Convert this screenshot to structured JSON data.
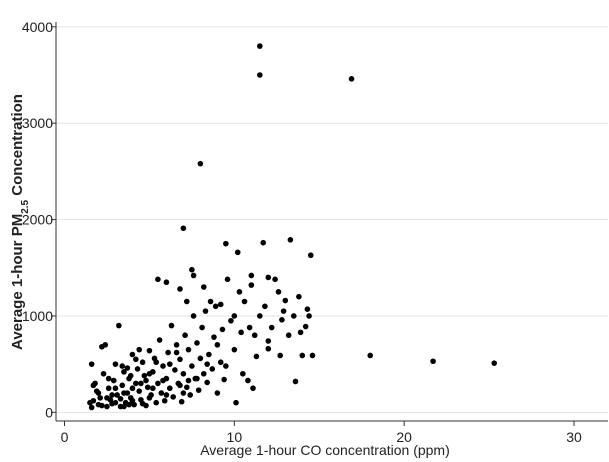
{
  "chart_data": {
    "type": "scatter",
    "x_label": "Average 1-hour CO concentration (ppm)",
    "y_label": [
      "Average 1-hour PM",
      "2.5",
      " Concentration"
    ],
    "color": "#000000",
    "xlim": [
      -0.5,
      32
    ],
    "xticks": [
      0,
      10,
      20,
      30
    ],
    "ylim": [
      -90,
      4050
    ],
    "yticks": [
      0,
      1000,
      2000,
      3000,
      4000
    ],
    "grid": true,
    "x": [
      1.6,
      1.7,
      1.8,
      1.6,
      1.9,
      2.0,
      2.1,
      2.2,
      2.3,
      2.4,
      2.5,
      2.6,
      2.7,
      2.8,
      2.9,
      3.0,
      3.1,
      3.2,
      3.3,
      3.4,
      3.5,
      3.6,
      3.7,
      3.8,
      3.9,
      4.0,
      4.1,
      4.2,
      4.3,
      4.4,
      4.5,
      4.6,
      4.7,
      4.8,
      4.9,
      5.0,
      5.1,
      5.2,
      5.3,
      5.4,
      5.5,
      5.6,
      5.7,
      5.8,
      5.9,
      6.0,
      6.1,
      6.2,
      6.3,
      6.4,
      6.5,
      6.6,
      6.7,
      6.8,
      6.9,
      7.0,
      7.1,
      7.2,
      7.3,
      7.4,
      7.5,
      7.6,
      7.7,
      7.8,
      7.9,
      8.0,
      8.1,
      8.2,
      8.3,
      8.4,
      8.5,
      8.6,
      8.7,
      8.8,
      8.9,
      9.0,
      9.2,
      9.3,
      9.4,
      9.6,
      9.8,
      10.0,
      10.1,
      10.3,
      10.4,
      10.6,
      10.8,
      10.9,
      11.0,
      11.1,
      11.3,
      11.5,
      11.8,
      12.0,
      12.2,
      12.4,
      12.7,
      12.9,
      13.2,
      13.5,
      13.8,
      14.0,
      14.2,
      14.6,
      11.5,
      11.5,
      16.9,
      8.0,
      7.0,
      18.0,
      21.7,
      25.3,
      13.3,
      11.7,
      9.5,
      14.5,
      10.2,
      7.5,
      5.5,
      6.0,
      11.0,
      12.0,
      12.6,
      13.0,
      14.3,
      13.6,
      12.0,
      2.0,
      2.5,
      3.0,
      3.0,
      3.5,
      3.5,
      4.0,
      4.0,
      4.5,
      5.0,
      5.0,
      3.8,
      4.2,
      2.8,
      3.3,
      3.7,
      4.6,
      5.2,
      5.8,
      6.2,
      6.8,
      7.3,
      1.5,
      1.7,
      2.2,
      2.6,
      3.4,
      3.9,
      4.4,
      4.8,
      5.4,
      6.0,
      6.6,
      7.0,
      7.8,
      8.4,
      9.0,
      9.5,
      10.5,
      11.2,
      10.0,
      9.2,
      8.2,
      6.8,
      7.2,
      7.6,
      12.8,
      13.9,
      14.4
    ],
    "values": [
      50,
      120,
      300,
      500,
      220,
      80,
      150,
      680,
      400,
      700,
      60,
      250,
      130,
      90,
      330,
      500,
      180,
      900,
      60,
      280,
      420,
      100,
      200,
      350,
      150,
      600,
      80,
      300,
      450,
      220,
      130,
      520,
      380,
      70,
      260,
      640,
      180,
      420,
      560,
      100,
      300,
      750,
      200,
      480,
      120,
      350,
      620,
      250,
      900,
      160,
      440,
      700,
      300,
      550,
      110,
      400,
      800,
      260,
      650,
      180,
      480,
      1000,
      350,
      720,
      230,
      560,
      880,
      400,
      1050,
      310,
      600,
      1150,
      450,
      780,
      1100,
      200,
      520,
      860,
      340,
      1380,
      950,
      650,
      100,
      1250,
      830,
      1150,
      330,
      880,
      1320,
      250,
      580,
      1000,
      1100,
      660,
      880,
      1380,
      590,
      1050,
      800,
      1000,
      1200,
      590,
      890,
      590,
      3800,
      3500,
      3460,
      2580,
      1910,
      590,
      530,
      510,
      1790,
      1760,
      1750,
      1630,
      1660,
      1480,
      1380,
      1350,
      1420,
      1400,
      1250,
      1160,
      1070,
      320,
      740,
      200,
      150,
      100,
      250,
      60,
      200,
      120,
      250,
      300,
      150,
      400,
      80,
      550,
      180,
      140,
      460,
      90,
      250,
      330,
      500,
      280,
      330,
      100,
      280,
      70,
      350,
      480,
      380,
      650,
      330,
      520,
      180,
      620,
      200,
      350,
      500,
      700,
      480,
      400,
      800,
      1000,
      1120,
      1300,
      1280,
      1150,
      1420,
      960,
      830,
      1000
    ]
  }
}
